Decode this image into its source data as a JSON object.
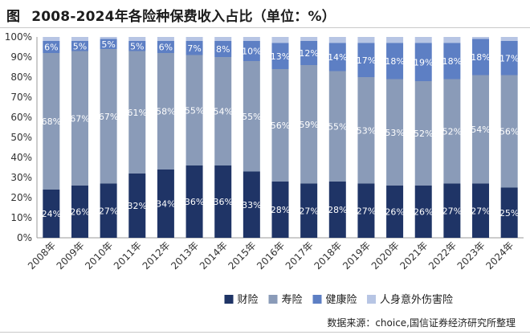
{
  "figure_label": "图",
  "title": "2008-2024年各险种保费收入占比（单位：%）",
  "source": "数据来源：choice,国信证券经济研究所整理",
  "chart_data": {
    "type": "bar",
    "stacked": true,
    "percent": true,
    "categories": [
      "2008年",
      "2009年",
      "2010年",
      "2011年",
      "2012年",
      "2013年",
      "2014年",
      "2015年",
      "2016年",
      "2017年",
      "2018年",
      "2019年",
      "2020年",
      "2021年",
      "2022年",
      "2023年",
      "2024年"
    ],
    "series": [
      {
        "name": "财险",
        "color": "#1f3466",
        "values": [
          24,
          26,
          27,
          32,
          34,
          36,
          36,
          33,
          28,
          27,
          28,
          27,
          26,
          26,
          27,
          27,
          25
        ]
      },
      {
        "name": "寿险",
        "color": "#8a9bb8",
        "values": [
          68,
          67,
          67,
          61,
          58,
          55,
          54,
          55,
          56,
          59,
          55,
          53,
          53,
          52,
          52,
          54,
          56
        ]
      },
      {
        "name": "健康险",
        "color": "#5d7fc4",
        "values": [
          6,
          5,
          5,
          5,
          6,
          7,
          8,
          10,
          13,
          12,
          14,
          17,
          18,
          19,
          18,
          18,
          17
        ]
      },
      {
        "name": "人身意外伤害险",
        "color": "#b7c5e4",
        "values": [
          2,
          2,
          1,
          2,
          2,
          2,
          2,
          2,
          3,
          2,
          3,
          3,
          3,
          3,
          3,
          1,
          2
        ]
      }
    ],
    "label_series": [
      "财险",
      "寿险",
      "健康险"
    ],
    "yticks": [
      "0%",
      "10%",
      "20%",
      "30%",
      "40%",
      "50%",
      "60%",
      "70%",
      "80%",
      "90%",
      "100%"
    ],
    "ylim": [
      0,
      100
    ],
    "legend_position": "bottom"
  }
}
